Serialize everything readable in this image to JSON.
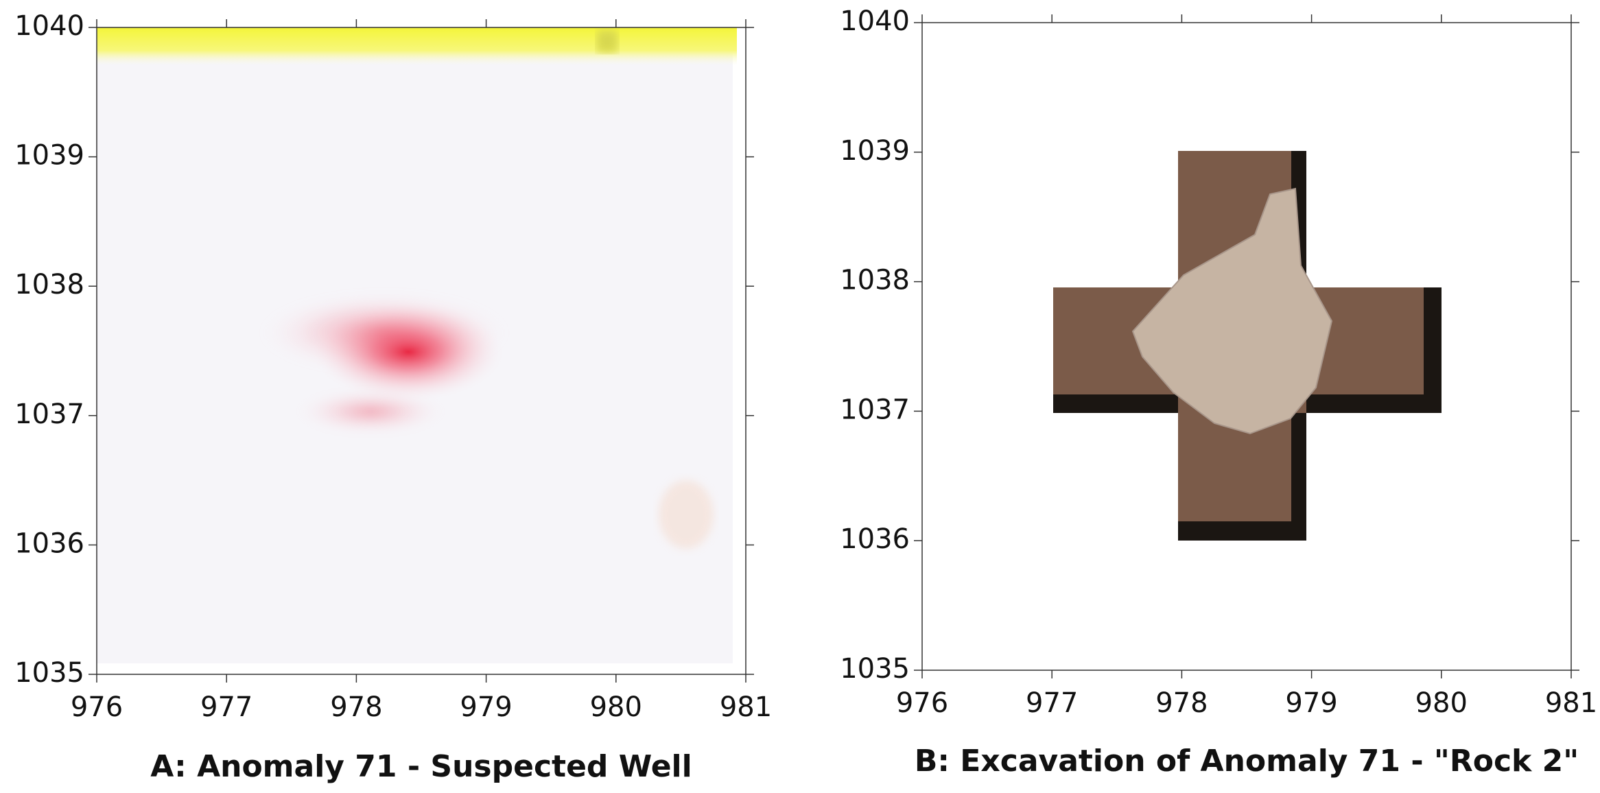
{
  "chart_data": [
    {
      "type": "heatmap",
      "title": "A: Anomaly 71 - Suspected Well",
      "xlim": [
        976,
        981
      ],
      "ylim": [
        1035,
        1040
      ],
      "xticks": [
        976,
        977,
        978,
        979,
        980,
        981
      ],
      "yticks": [
        1035,
        1036,
        1037,
        1038,
        1039,
        1040
      ]
    },
    {
      "type": "image",
      "title": "B: Excavation of Anomaly 71 - \"Rock 2\"",
      "xlim": [
        976,
        981
      ],
      "ylim": [
        1035,
        1040
      ],
      "xticks": [
        976,
        977,
        978,
        979,
        980,
        981
      ],
      "yticks": [
        1035,
        1036,
        1037,
        1038,
        1039,
        1040
      ]
    }
  ]
}
